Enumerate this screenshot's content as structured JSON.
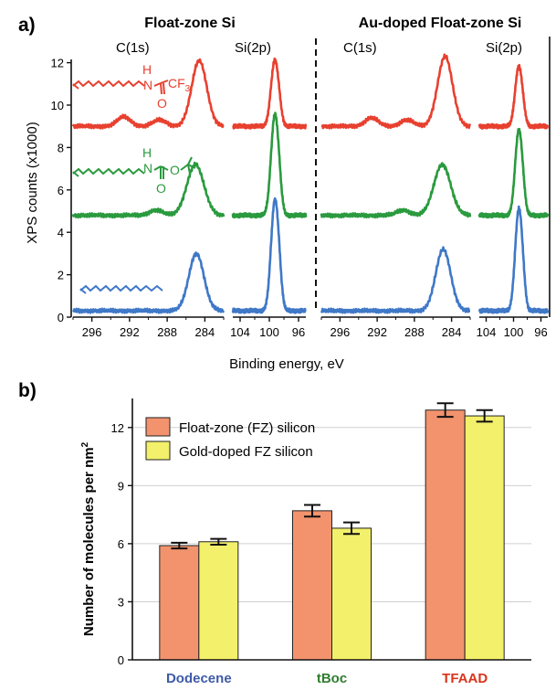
{
  "colors": {
    "red": "#e8402f",
    "green": "#2a9a3e",
    "blue": "#3f78c7",
    "fz_bar": "#f2936e",
    "au_bar": "#f3f06b",
    "grid": "#d0d0d0",
    "dodecene_label": "#3e5aa8",
    "tboc_label": "#2f7d2f",
    "tfaad_label": "#d9341c"
  },
  "panel_a": {
    "letter": "a)",
    "left_title": "Float-zone Si",
    "right_title": "Au-doped Float-zone Si",
    "c1s_label": "C(1s)",
    "si2p_label": "Si(2p)",
    "ylabel": "XPS counts (x1000)",
    "xlabel": "Binding energy, eV",
    "molecules": {
      "tfaad": {
        "h": "H",
        "n": "N",
        "o": "O",
        "cf3": "CF",
        "sub3": "3"
      },
      "tboc": {
        "h": "H",
        "n": "N",
        "o1": "O",
        "o2": "O"
      }
    }
  },
  "panel_b": {
    "letter": "b)"
  },
  "chart_data": [
    {
      "type": "line",
      "panel": "a",
      "title": "Float-zone Si",
      "xlabel": "Binding energy, eV",
      "ylabel": "XPS counts (x1000)",
      "ylim": [
        0,
        12.5
      ],
      "y_ticks": [
        0,
        2,
        4,
        6,
        8,
        10,
        12
      ],
      "segments": [
        {
          "region": "C(1s)",
          "xlim": [
            298,
            282
          ],
          "x_ticks": [
            296,
            292,
            288,
            284
          ]
        },
        {
          "region": "Si(2p)",
          "xlim": [
            105,
            95
          ],
          "x_ticks": [
            104,
            100,
            96
          ]
        }
      ],
      "series": [
        {
          "color": "red",
          "baseline": 9.0,
          "c1s_peaks": [
            {
              "x": 284.6,
              "height": 3.1,
              "width": 0.8
            },
            {
              "x": 292.6,
              "height": 0.45,
              "width": 0.7
            },
            {
              "x": 288.8,
              "height": 0.3,
              "width": 0.7
            }
          ],
          "si2p_peaks": [
            {
              "x": 99.3,
              "height": 2.9,
              "width": 0.5
            },
            {
              "x": 98.7,
              "height": 0.6,
              "width": 0.4
            }
          ]
        },
        {
          "color": "green",
          "baseline": 4.8,
          "c1s_peaks": [
            {
              "x": 285.0,
              "height": 2.4,
              "width": 0.9
            },
            {
              "x": 289.2,
              "height": 0.25,
              "width": 0.7
            }
          ],
          "si2p_peaks": [
            {
              "x": 99.3,
              "height": 4.4,
              "width": 0.5
            },
            {
              "x": 98.7,
              "height": 1.0,
              "width": 0.4
            }
          ]
        },
        {
          "color": "blue",
          "baseline": 0.3,
          "c1s_peaks": [
            {
              "x": 284.9,
              "height": 2.7,
              "width": 0.8
            }
          ],
          "si2p_peaks": [
            {
              "x": 99.3,
              "height": 4.8,
              "width": 0.5
            },
            {
              "x": 98.7,
              "height": 1.2,
              "width": 0.4
            }
          ]
        }
      ]
    },
    {
      "type": "line",
      "panel": "a",
      "title": "Au-doped Float-zone Si",
      "xlabel": "Binding energy, eV",
      "ylim": [
        0,
        12.5
      ],
      "segments": [
        {
          "region": "C(1s)",
          "xlim": [
            298,
            282
          ],
          "x_ticks": [
            296,
            292,
            288,
            284
          ]
        },
        {
          "region": "Si(2p)",
          "xlim": [
            105,
            95
          ],
          "x_ticks": [
            104,
            100,
            96
          ]
        }
      ],
      "series": [
        {
          "color": "red",
          "baseline": 9.0,
          "c1s_peaks": [
            {
              "x": 284.7,
              "height": 3.3,
              "width": 0.8
            },
            {
              "x": 292.6,
              "height": 0.4,
              "width": 0.7
            },
            {
              "x": 288.8,
              "height": 0.3,
              "width": 0.7
            }
          ],
          "si2p_peaks": [
            {
              "x": 99.3,
              "height": 2.6,
              "width": 0.5
            },
            {
              "x": 98.7,
              "height": 0.6,
              "width": 0.4
            }
          ]
        },
        {
          "color": "green",
          "baseline": 4.8,
          "c1s_peaks": [
            {
              "x": 285.0,
              "height": 2.4,
              "width": 0.9
            },
            {
              "x": 289.2,
              "height": 0.25,
              "width": 0.7
            }
          ],
          "si2p_peaks": [
            {
              "x": 99.3,
              "height": 3.7,
              "width": 0.5
            },
            {
              "x": 98.7,
              "height": 0.9,
              "width": 0.4
            }
          ]
        },
        {
          "color": "blue",
          "baseline": 0.3,
          "c1s_peaks": [
            {
              "x": 284.9,
              "height": 2.9,
              "width": 0.8
            }
          ],
          "si2p_peaks": [
            {
              "x": 99.3,
              "height": 4.4,
              "width": 0.5
            },
            {
              "x": 98.7,
              "height": 1.1,
              "width": 0.4
            }
          ]
        }
      ]
    },
    {
      "type": "bar",
      "panel": "b",
      "ylabel": "Number of molecules per nm",
      "ylabel_superscript": "2",
      "ylim": [
        0,
        13.5
      ],
      "y_ticks": [
        0,
        3,
        6,
        9,
        12
      ],
      "grid": true,
      "legend_position": "top-left",
      "categories": [
        "Dodecene",
        "tBoc",
        "TFAAD"
      ],
      "category_colors": [
        "dodecene_label",
        "tboc_label",
        "tfaad_label"
      ],
      "series": [
        {
          "name": "Float-zone (FZ) silicon",
          "color": "fz_bar",
          "values": [
            5.9,
            7.7,
            12.9
          ],
          "errors": [
            0.15,
            0.3,
            0.35
          ]
        },
        {
          "name": "Gold-doped FZ silicon",
          "color": "au_bar",
          "values": [
            6.1,
            6.8,
            12.6
          ],
          "errors": [
            0.15,
            0.3,
            0.3
          ]
        }
      ]
    }
  ]
}
